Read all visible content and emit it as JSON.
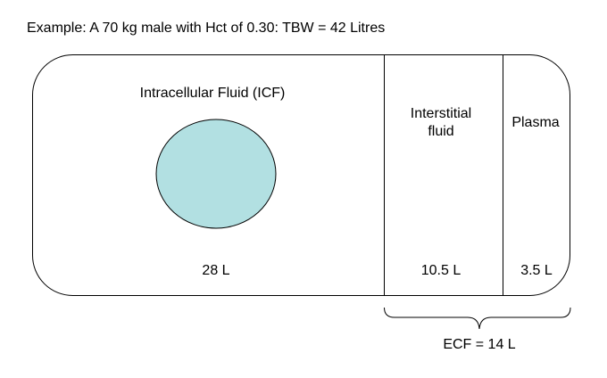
{
  "example": "Example:  A 70 kg male with Hct of 0.30:  TBW = 42 Litres",
  "compartments": {
    "icf": {
      "label": "Intracellular Fluid (ICF)",
      "volume": "28 L",
      "color": "#b2e0e2"
    },
    "interstitial": {
      "label_line1": "Interstitial",
      "label_line2": "fluid",
      "volume": "10.5 L"
    },
    "plasma": {
      "label": "Plasma",
      "volume": "3.5 L"
    }
  },
  "ecf": {
    "label": "ECF = 14 L"
  }
}
